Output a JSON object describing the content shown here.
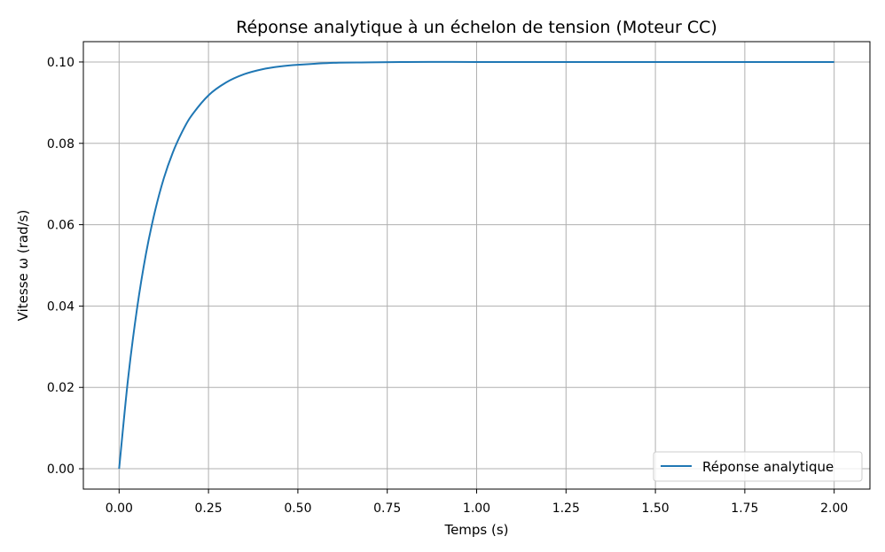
{
  "chart_data": {
    "type": "line",
    "title": "Réponse analytique à un échelon de tension (Moteur CC)",
    "xlabel": "Temps (s)",
    "ylabel": "Vitesse ω (rad/s)",
    "xlim": [
      -0.1,
      2.1
    ],
    "ylim": [
      -0.005,
      0.105
    ],
    "xticks": [
      0.0,
      0.25,
      0.5,
      0.75,
      1.0,
      1.25,
      1.5,
      1.75,
      2.0
    ],
    "xtick_labels": [
      "0.00",
      "0.25",
      "0.50",
      "0.75",
      "1.00",
      "1.25",
      "1.50",
      "1.75",
      "2.00"
    ],
    "yticks": [
      0.0,
      0.02,
      0.04,
      0.06,
      0.08,
      0.1
    ],
    "ytick_labels": [
      "0.00",
      "0.02",
      "0.04",
      "0.06",
      "0.08",
      "0.10"
    ],
    "grid": true,
    "legend": {
      "position": "bottom-right"
    },
    "series": [
      {
        "name": "Réponse analytique",
        "color": "#1f77b4",
        "x": [
          0.0,
          0.025,
          0.05,
          0.075,
          0.1,
          0.125,
          0.15,
          0.175,
          0.2,
          0.25,
          0.3,
          0.35,
          0.4,
          0.45,
          0.5,
          0.6,
          0.7,
          0.8,
          1.0,
          1.25,
          1.5,
          1.75,
          2.0
        ],
        "y": [
          0.0,
          0.0221,
          0.0393,
          0.0528,
          0.0632,
          0.0714,
          0.0777,
          0.0826,
          0.0865,
          0.0918,
          0.095,
          0.097,
          0.0982,
          0.0989,
          0.0993,
          0.0998,
          0.0999,
          0.1,
          0.1,
          0.1,
          0.1,
          0.1,
          0.1
        ]
      }
    ]
  }
}
